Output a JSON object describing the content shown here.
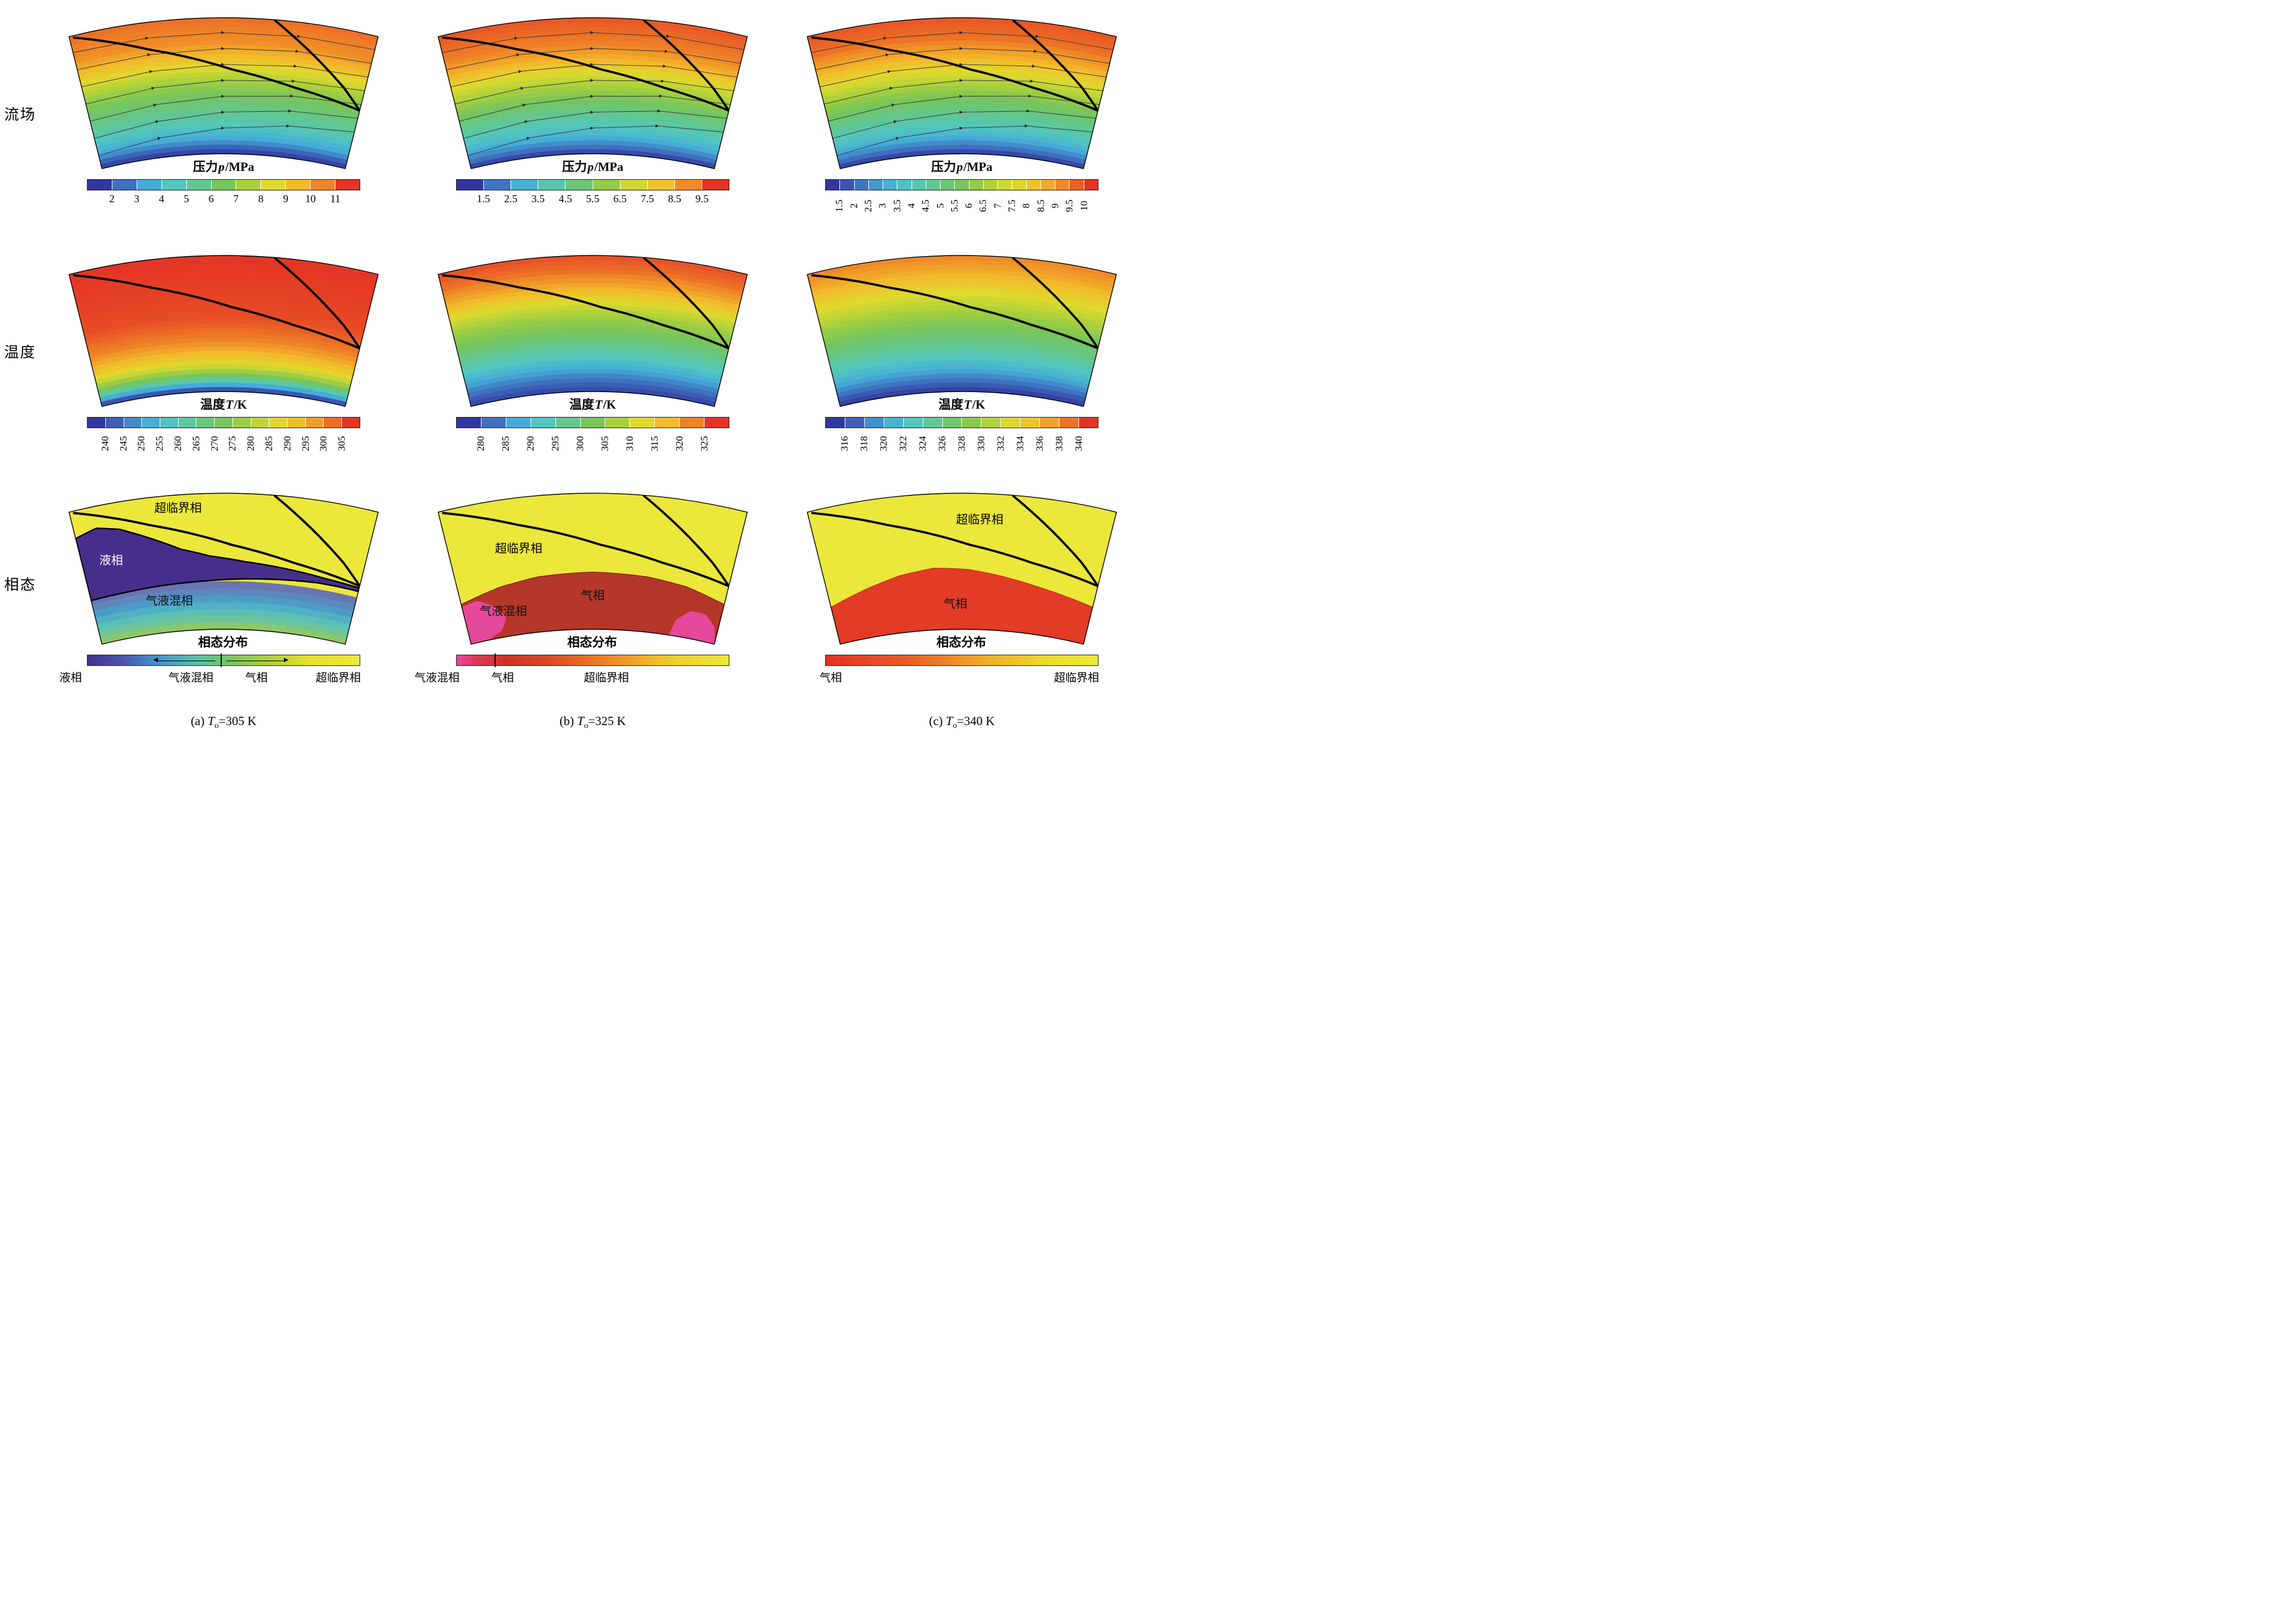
{
  "row_labels": [
    "流场",
    "温度",
    "相态"
  ],
  "captions": [
    {
      "prefix": "(a) ",
      "var": "T",
      "sub": "o",
      "rest": "=305 K"
    },
    {
      "prefix": "(b) ",
      "var": "T",
      "sub": "o",
      "rest": "=325 K"
    },
    {
      "prefix": "(c) ",
      "var": "T",
      "sub": "o",
      "rest": "=340 K"
    }
  ],
  "palette_anchors": [
    "#31379e",
    "#3f6fbe",
    "#45acd8",
    "#52c6c0",
    "#62c78e",
    "#77c55b",
    "#a9d03c",
    "#e0da2e",
    "#f2bb2b",
    "#ef8427",
    "#e33425"
  ],
  "blade_lines": [
    [
      [
        -0.97,
        0.985
      ],
      [
        -0.5,
        0.8
      ],
      [
        0.06,
        0.62
      ],
      [
        0.5,
        0.52
      ],
      [
        1,
        0.44
      ]
    ],
    [
      [
        0.33,
        0.995
      ],
      [
        0.6,
        0.78
      ],
      [
        0.85,
        0.58
      ],
      [
        1,
        0.44
      ]
    ]
  ],
  "chart_data": [
    {
      "type": "heatmap",
      "id": "flow-a",
      "subplot": "(a)",
      "row_label": "流场",
      "title": {
        "pre": "压力",
        "var": "p",
        "post": "/MPa"
      },
      "streamlines": true,
      "profile": [
        [
          0,
          0
        ],
        [
          0.04,
          0.06
        ],
        [
          0.1,
          0.18
        ],
        [
          0.22,
          0.32
        ],
        [
          0.36,
          0.44
        ],
        [
          0.5,
          0.55
        ],
        [
          0.6,
          0.66
        ],
        [
          0.7,
          0.78
        ],
        [
          0.82,
          0.88
        ],
        [
          1,
          0.93
        ]
      ],
      "colorbar": {
        "kind": "discrete",
        "tick_orientation": "horizontal",
        "ticks": [
          "2",
          "3",
          "4",
          "5",
          "6",
          "7",
          "8",
          "9",
          "10",
          "11"
        ]
      }
    },
    {
      "type": "heatmap",
      "id": "flow-b",
      "subplot": "(b)",
      "row_label": "流场",
      "title": {
        "pre": "压力",
        "var": "p",
        "post": "/MPa"
      },
      "streamlines": true,
      "profile": [
        [
          0,
          0
        ],
        [
          0.05,
          0.1
        ],
        [
          0.15,
          0.25
        ],
        [
          0.3,
          0.4
        ],
        [
          0.45,
          0.55
        ],
        [
          0.58,
          0.68
        ],
        [
          0.68,
          0.8
        ],
        [
          0.8,
          0.9
        ],
        [
          1,
          0.96
        ]
      ],
      "colorbar": {
        "kind": "discrete",
        "tick_orientation": "horizontal",
        "ticks": [
          "1.5",
          "2.5",
          "3.5",
          "4.5",
          "5.5",
          "6.5",
          "7.5",
          "8.5",
          "9.5"
        ]
      }
    },
    {
      "type": "heatmap",
      "id": "flow-c",
      "subplot": "(c)",
      "row_label": "流场",
      "title": {
        "pre": "压力",
        "var": "p",
        "post": "/MPa"
      },
      "streamlines": true,
      "profile": [
        [
          0,
          0
        ],
        [
          0.05,
          0.1
        ],
        [
          0.16,
          0.26
        ],
        [
          0.3,
          0.4
        ],
        [
          0.46,
          0.55
        ],
        [
          0.6,
          0.7
        ],
        [
          0.72,
          0.82
        ],
        [
          0.85,
          0.92
        ],
        [
          1,
          0.96
        ]
      ],
      "colorbar": {
        "kind": "discrete",
        "tick_orientation": "vertical",
        "ticks": [
          "1.5",
          "2",
          "2.5",
          "3",
          "3.5",
          "4",
          "4.5",
          "5",
          "5.5",
          "6",
          "6.5",
          "7",
          "7.5",
          "8",
          "8.5",
          "9",
          "9.5",
          "10"
        ]
      }
    },
    {
      "type": "heatmap",
      "id": "temp-a",
      "subplot": "(a)",
      "row_label": "温度",
      "title": {
        "pre": "温度",
        "var": "T",
        "post": "/K"
      },
      "streamlines": false,
      "profile": [
        [
          0,
          0
        ],
        [
          0.03,
          0.1
        ],
        [
          0.07,
          0.3
        ],
        [
          0.12,
          0.5
        ],
        [
          0.18,
          0.65
        ],
        [
          0.26,
          0.78
        ],
        [
          0.38,
          0.9
        ],
        [
          0.55,
          0.97
        ],
        [
          1,
          1
        ]
      ],
      "colorbar": {
        "kind": "discrete",
        "tick_orientation": "vertical",
        "ticks": [
          "240",
          "245",
          "250",
          "255",
          "260",
          "265",
          "270",
          "275",
          "280",
          "285",
          "290",
          "295",
          "300",
          "305"
        ]
      }
    },
    {
      "type": "heatmap",
      "id": "temp-b",
      "subplot": "(b)",
      "row_label": "温度",
      "title": {
        "pre": "温度",
        "var": "T",
        "post": "/K"
      },
      "streamlines": false,
      "profile": [
        [
          0,
          0.02
        ],
        [
          0.1,
          0.12
        ],
        [
          0.25,
          0.3
        ],
        [
          0.42,
          0.48
        ],
        [
          0.55,
          0.58
        ],
        [
          0.66,
          0.7
        ],
        [
          0.76,
          0.82
        ],
        [
          0.88,
          0.92
        ],
        [
          1,
          0.97
        ]
      ],
      "colorbar": {
        "kind": "discrete",
        "tick_orientation": "vertical",
        "ticks": [
          "280",
          "285",
          "290",
          "295",
          "300",
          "305",
          "310",
          "315",
          "320",
          "325"
        ]
      }
    },
    {
      "type": "heatmap",
      "id": "temp-c",
      "subplot": "(c)",
      "row_label": "温度",
      "title": {
        "pre": "温度",
        "var": "T",
        "post": "/K"
      },
      "streamlines": false,
      "profile": [
        [
          0,
          0
        ],
        [
          0.08,
          0.1
        ],
        [
          0.2,
          0.25
        ],
        [
          0.35,
          0.4
        ],
        [
          0.5,
          0.52
        ],
        [
          0.63,
          0.63
        ],
        [
          0.76,
          0.73
        ],
        [
          0.87,
          0.82
        ],
        [
          1,
          0.9
        ]
      ],
      "colorbar": {
        "kind": "discrete",
        "tick_orientation": "vertical",
        "ticks": [
          "316",
          "318",
          "320",
          "322",
          "324",
          "326",
          "328",
          "330",
          "332",
          "334",
          "336",
          "338",
          "340"
        ]
      }
    },
    {
      "type": "heatmap",
      "id": "phase-a",
      "subplot": "(a)",
      "row_label": "相态",
      "title": {
        "pre": "相态分布",
        "var": "",
        "post": ""
      },
      "base_color": "#ece73b",
      "stripes": {
        "band_height": 0.05,
        "colors": [
          "#8cc86a",
          "#6ec49a",
          "#5cc0b4",
          "#50b0c4",
          "#4e9cc6",
          "#5c88bc",
          "#6a74b2"
        ]
      },
      "regions": [
        {
          "name": "liquid",
          "color": "#462f8c",
          "stroke": "#000000",
          "stroke_width": 2.5,
          "points": [
            [
              -1,
              0.8
            ],
            [
              -0.85,
              0.84
            ],
            [
              -0.7,
              0.8
            ],
            [
              -0.5,
              0.7
            ],
            [
              -0.3,
              0.6
            ],
            [
              -0.1,
              0.54
            ],
            [
              0.15,
              0.5
            ],
            [
              0.45,
              0.47
            ],
            [
              0.75,
              0.44
            ],
            [
              1,
              0.425
            ],
            [
              1,
              0.4
            ],
            [
              0.7,
              0.4
            ],
            [
              0.4,
              0.385
            ],
            [
              0.1,
              0.37
            ],
            [
              -0.2,
              0.355
            ],
            [
              -0.5,
              0.345
            ],
            [
              -0.75,
              0.335
            ],
            [
              -1,
              0.33
            ]
          ]
        }
      ],
      "region_labels": [
        {
          "text": "超临界相",
          "u": -0.3,
          "v": 0.875,
          "color": "#000000"
        },
        {
          "text": "液相",
          "u": -0.8,
          "v": 0.56,
          "color": "#ffffff"
        },
        {
          "text": "气液混相",
          "u": -0.42,
          "v": 0.2,
          "color": "#101010"
        }
      ],
      "colorbar": {
        "kind": "gradient",
        "stops": [
          "#45318c 0%",
          "#4a55ae 13%",
          "#4898cc 27%",
          "#55c0a6 40%",
          "#7cc75c 54%",
          "#b5d23a 68%",
          "#e8df2f 82%",
          "#efe93a 100%"
        ],
        "legend": [
          {
            "text": "液相",
            "x": -0.06
          },
          {
            "text": "气液混相",
            "x": 0.38
          },
          {
            "text": "气相",
            "x": 0.62
          },
          {
            "text": "超临界相",
            "x": 0.92
          }
        ],
        "marks": {
          "ticks": [
            0.49
          ],
          "arrows": [
            {
              "from": 0.47,
              "to": 0.25,
              "dir": "left"
            },
            {
              "from": 0.51,
              "to": 0.73,
              "dir": "right"
            }
          ]
        }
      }
    },
    {
      "type": "heatmap",
      "id": "phase-b",
      "subplot": "(b)",
      "row_label": "相态",
      "title": {
        "pre": "相态分布",
        "var": "",
        "post": ""
      },
      "base_color": "#ece73b",
      "regions": [
        {
          "name": "gas",
          "color": "#b5372a",
          "stroke": "#8a221a",
          "stroke_width": 1.5,
          "points": [
            [
              -1,
              0.3
            ],
            [
              -0.7,
              0.365
            ],
            [
              -0.4,
              0.405
            ],
            [
              0,
              0.42
            ],
            [
              0.4,
              0.405
            ],
            [
              0.7,
              0.37
            ],
            [
              1,
              0.3
            ],
            [
              1,
              0
            ],
            [
              -1,
              0
            ]
          ]
        },
        {
          "name": "gas-liquid-left",
          "color": "#e6489a",
          "stroke": "none",
          "stroke_width": 0,
          "points": [
            [
              -1,
              0.0
            ],
            [
              -1,
              0.28
            ],
            [
              -0.88,
              0.3
            ],
            [
              -0.76,
              0.24
            ],
            [
              -0.68,
              0.14
            ],
            [
              -0.73,
              0.05
            ],
            [
              -0.85,
              0.0
            ]
          ]
        },
        {
          "name": "gas-liquid-right",
          "color": "#e6489a",
          "stroke": "none",
          "stroke_width": 0,
          "points": [
            [
              0.62,
              0.0
            ],
            [
              0.66,
              0.12
            ],
            [
              0.76,
              0.2
            ],
            [
              0.88,
              0.2
            ],
            [
              0.97,
              0.12
            ],
            [
              1,
              0.0
            ]
          ]
        }
      ],
      "region_labels": [
        {
          "text": "超临界相",
          "u": -0.52,
          "v": 0.6,
          "color": "#000000"
        },
        {
          "text": "气液混相",
          "u": -0.7,
          "v": 0.16,
          "color": "#101010"
        },
        {
          "text": "气相",
          "u": 0,
          "v": 0.22,
          "color": "#101010"
        }
      ],
      "colorbar": {
        "kind": "gradient",
        "stops": [
          "#e8459c 0%",
          "#d63a4e 8%",
          "#cc3328 18%",
          "#d84c27 35%",
          "#ef8427 55%",
          "#eecb2d 78%",
          "#efe93a 100%"
        ],
        "legend": [
          {
            "text": "气液混相",
            "x": -0.07
          },
          {
            "text": "气相",
            "x": 0.17
          },
          {
            "text": "超临界相",
            "x": 0.55
          }
        ],
        "marks": {
          "ticks": [
            0.14
          ],
          "arrows": []
        }
      }
    },
    {
      "type": "heatmap",
      "id": "phase-c",
      "subplot": "(c)",
      "row_label": "相态",
      "title": {
        "pre": "相态分布",
        "var": "",
        "post": ""
      },
      "base_color": "#ece73b",
      "regions": [
        {
          "name": "gas",
          "color": "#e23b26",
          "stroke": "#b0271c",
          "stroke_width": 1,
          "points": [
            [
              -1,
              0.28
            ],
            [
              -0.7,
              0.36
            ],
            [
              -0.45,
              0.42
            ],
            [
              -0.2,
              0.455
            ],
            [
              0.05,
              0.44
            ],
            [
              0.3,
              0.4
            ],
            [
              0.6,
              0.345
            ],
            [
              1,
              0.28
            ],
            [
              1,
              0
            ],
            [
              -1,
              0
            ]
          ]
        }
      ],
      "region_labels": [
        {
          "text": "超临界相",
          "u": 0.12,
          "v": 0.78,
          "color": "#000000"
        },
        {
          "text": "气相",
          "u": -0.05,
          "v": 0.16,
          "color": "#101010"
        }
      ],
      "colorbar": {
        "kind": "gradient",
        "stops": [
          "#e23226 0%",
          "#e85c27 30%",
          "#f0a42a 55%",
          "#ecd92f 80%",
          "#efe93a 100%"
        ],
        "legend": [
          {
            "text": "气相",
            "x": 0.02
          },
          {
            "text": "超临界相",
            "x": 0.92
          }
        ],
        "marks": {
          "ticks": [],
          "arrows": []
        }
      }
    }
  ]
}
